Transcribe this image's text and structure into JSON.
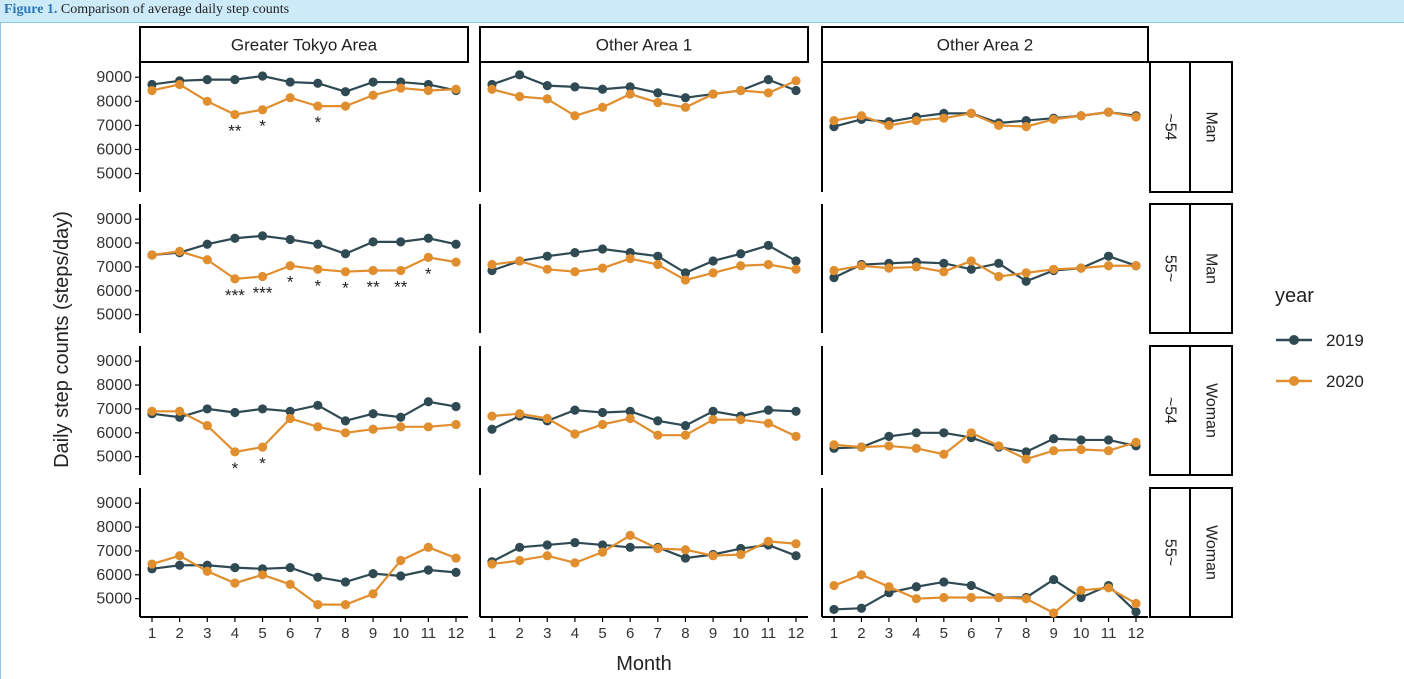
{
  "caption": {
    "prefix": "Figure 1.",
    "text": "Comparison of average daily step counts"
  },
  "colors": {
    "s2019": "#2f4a52",
    "s2020": "#e08e2e",
    "frame": "#000000",
    "caption_bar": "#cdeaf9"
  },
  "chart_data": {
    "type": "line",
    "xlabel": "Month",
    "ylabel": "Daily step counts (steps/day)",
    "x": [
      1,
      2,
      3,
      4,
      5,
      6,
      7,
      8,
      9,
      10,
      11,
      12
    ],
    "ylim": [
      4400,
      9300
    ],
    "yticks": [
      5000,
      6000,
      7000,
      8000,
      9000
    ],
    "legend": {
      "title": "year",
      "entries": [
        "2019",
        "2020"
      ],
      "placement": "right"
    },
    "columns": [
      "Greater Tokyo Area",
      "Other Area 1",
      "Other Area 2"
    ],
    "rows": [
      {
        "age": "~54",
        "sex": "Man"
      },
      {
        "age": "55~",
        "sex": "Man"
      },
      {
        "age": "~54",
        "sex": "Woman"
      },
      {
        "age": "55~",
        "sex": "Woman"
      }
    ],
    "panels": [
      [
        {
          "s2019": [
            8700,
            8850,
            8900,
            8900,
            9050,
            8800,
            8750,
            8400,
            8800,
            8800,
            8700,
            8450
          ],
          "s2020": [
            8450,
            8700,
            8000,
            7450,
            7650,
            8150,
            7800,
            7800,
            8250,
            8550,
            8450,
            8500
          ],
          "stars": [
            null,
            null,
            null,
            "**",
            "*",
            null,
            "*",
            null,
            null,
            null,
            null,
            null
          ]
        },
        {
          "s2019": [
            8700,
            9100,
            8650,
            8600,
            8500,
            8600,
            8350,
            8150,
            8300,
            8450,
            8900,
            8450
          ],
          "s2020": [
            8500,
            8200,
            8100,
            7400,
            7750,
            8300,
            7950,
            7750,
            8300,
            8450,
            8350,
            8850
          ],
          "stars": []
        },
        {
          "s2019": [
            6950,
            7250,
            7150,
            7350,
            7500,
            7500,
            7100,
            7200,
            7300,
            7400,
            7550,
            7400
          ],
          "s2020": [
            7200,
            7400,
            7000,
            7200,
            7300,
            7500,
            7000,
            6950,
            7250,
            7400,
            7550,
            7350
          ],
          "stars": []
        }
      ],
      [
        {
          "s2019": [
            7500,
            7600,
            7950,
            8200,
            8300,
            8150,
            7950,
            7550,
            8050,
            8050,
            8200,
            7950
          ],
          "s2020": [
            7500,
            7650,
            7300,
            6500,
            6600,
            7050,
            6900,
            6800,
            6850,
            6850,
            7400,
            7200
          ],
          "stars": [
            null,
            null,
            null,
            "***",
            "***",
            "*",
            "*",
            "*",
            "**",
            "**",
            "*",
            null
          ]
        },
        {
          "s2019": [
            6850,
            7250,
            7450,
            7600,
            7750,
            7600,
            7450,
            6750,
            7250,
            7550,
            7900,
            7250
          ],
          "s2020": [
            7100,
            7250,
            6900,
            6800,
            6950,
            7350,
            7100,
            6450,
            6750,
            7050,
            7100,
            6900
          ],
          "stars": []
        },
        {
          "s2019": [
            6550,
            7100,
            7150,
            7200,
            7150,
            6900,
            7150,
            6400,
            6850,
            6950,
            7450,
            7050
          ],
          "s2020": [
            6850,
            7050,
            6950,
            7000,
            6800,
            7250,
            6600,
            6750,
            6900,
            6950,
            7050,
            7050
          ],
          "stars": []
        }
      ],
      [
        {
          "s2019": [
            6800,
            6650,
            7000,
            6850,
            7000,
            6900,
            7150,
            6500,
            6800,
            6650,
            7300,
            7100
          ],
          "s2020": [
            6900,
            6900,
            6300,
            5200,
            5400,
            6600,
            6250,
            6000,
            6150,
            6250,
            6250,
            6350
          ],
          "stars": [
            null,
            null,
            null,
            "*",
            "*",
            null,
            null,
            null,
            null,
            null,
            null,
            null
          ]
        },
        {
          "s2019": [
            6150,
            6700,
            6500,
            6950,
            6850,
            6900,
            6500,
            6300,
            6900,
            6700,
            6950,
            6900
          ],
          "s2020": [
            6700,
            6800,
            6600,
            5950,
            6350,
            6600,
            5900,
            5900,
            6550,
            6550,
            6400,
            5850
          ],
          "stars": []
        },
        {
          "s2019": [
            5350,
            5400,
            5850,
            6000,
            6000,
            5800,
            5400,
            5200,
            5750,
            5700,
            5700,
            5450
          ],
          "s2020": [
            5500,
            5400,
            5450,
            5350,
            5100,
            6000,
            5450,
            4900,
            5250,
            5300,
            5250,
            5600
          ],
          "stars": []
        }
      ],
      [
        {
          "s2019": [
            6250,
            6400,
            6400,
            6300,
            6250,
            6300,
            5900,
            5700,
            6050,
            5950,
            6200,
            6100
          ],
          "s2020": [
            6450,
            6800,
            6150,
            5650,
            6000,
            5600,
            4750,
            4750,
            5200,
            6600,
            7150,
            6700
          ],
          "stars": []
        },
        {
          "s2019": [
            6550,
            7150,
            7250,
            7350,
            7250,
            7150,
            7150,
            6700,
            6850,
            7100,
            7250,
            6800
          ],
          "s2020": [
            6450,
            6600,
            6800,
            6500,
            6950,
            7650,
            7100,
            7050,
            6800,
            6850,
            7400,
            7300
          ],
          "stars": []
        },
        {
          "s2019": [
            4550,
            4600,
            5250,
            5500,
            5700,
            5550,
            5050,
            5050,
            5800,
            5050,
            5550,
            4450
          ],
          "s2020": [
            5550,
            6000,
            5500,
            5000,
            5050,
            5050,
            5050,
            5000,
            4400,
            5350,
            5450,
            4800
          ],
          "stars": []
        }
      ]
    ]
  }
}
